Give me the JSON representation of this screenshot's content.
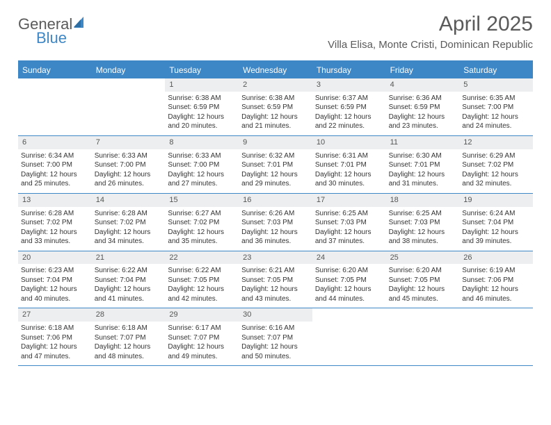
{
  "logo": {
    "word1": "General",
    "word2": "Blue",
    "word1_color": "#5a5a5a",
    "word2_color": "#3d87c7",
    "sail_color": "#3d87c7"
  },
  "title": "April 2025",
  "location": "Villa Elisa, Monte Cristi, Dominican Republic",
  "colors": {
    "header_bg": "#3d87c7",
    "daynum_bg": "#eceeef",
    "border": "#3d87c7",
    "text": "#333333",
    "title_color": "#5a5a5a"
  },
  "day_headers": [
    "Sunday",
    "Monday",
    "Tuesday",
    "Wednesday",
    "Thursday",
    "Friday",
    "Saturday"
  ],
  "weeks": [
    [
      null,
      null,
      {
        "n": "1",
        "sr": "Sunrise: 6:38 AM",
        "ss": "Sunset: 6:59 PM",
        "d1": "Daylight: 12 hours",
        "d2": "and 20 minutes."
      },
      {
        "n": "2",
        "sr": "Sunrise: 6:38 AM",
        "ss": "Sunset: 6:59 PM",
        "d1": "Daylight: 12 hours",
        "d2": "and 21 minutes."
      },
      {
        "n": "3",
        "sr": "Sunrise: 6:37 AM",
        "ss": "Sunset: 6:59 PM",
        "d1": "Daylight: 12 hours",
        "d2": "and 22 minutes."
      },
      {
        "n": "4",
        "sr": "Sunrise: 6:36 AM",
        "ss": "Sunset: 6:59 PM",
        "d1": "Daylight: 12 hours",
        "d2": "and 23 minutes."
      },
      {
        "n": "5",
        "sr": "Sunrise: 6:35 AM",
        "ss": "Sunset: 7:00 PM",
        "d1": "Daylight: 12 hours",
        "d2": "and 24 minutes."
      }
    ],
    [
      {
        "n": "6",
        "sr": "Sunrise: 6:34 AM",
        "ss": "Sunset: 7:00 PM",
        "d1": "Daylight: 12 hours",
        "d2": "and 25 minutes."
      },
      {
        "n": "7",
        "sr": "Sunrise: 6:33 AM",
        "ss": "Sunset: 7:00 PM",
        "d1": "Daylight: 12 hours",
        "d2": "and 26 minutes."
      },
      {
        "n": "8",
        "sr": "Sunrise: 6:33 AM",
        "ss": "Sunset: 7:00 PM",
        "d1": "Daylight: 12 hours",
        "d2": "and 27 minutes."
      },
      {
        "n": "9",
        "sr": "Sunrise: 6:32 AM",
        "ss": "Sunset: 7:01 PM",
        "d1": "Daylight: 12 hours",
        "d2": "and 29 minutes."
      },
      {
        "n": "10",
        "sr": "Sunrise: 6:31 AM",
        "ss": "Sunset: 7:01 PM",
        "d1": "Daylight: 12 hours",
        "d2": "and 30 minutes."
      },
      {
        "n": "11",
        "sr": "Sunrise: 6:30 AM",
        "ss": "Sunset: 7:01 PM",
        "d1": "Daylight: 12 hours",
        "d2": "and 31 minutes."
      },
      {
        "n": "12",
        "sr": "Sunrise: 6:29 AM",
        "ss": "Sunset: 7:02 PM",
        "d1": "Daylight: 12 hours",
        "d2": "and 32 minutes."
      }
    ],
    [
      {
        "n": "13",
        "sr": "Sunrise: 6:28 AM",
        "ss": "Sunset: 7:02 PM",
        "d1": "Daylight: 12 hours",
        "d2": "and 33 minutes."
      },
      {
        "n": "14",
        "sr": "Sunrise: 6:28 AM",
        "ss": "Sunset: 7:02 PM",
        "d1": "Daylight: 12 hours",
        "d2": "and 34 minutes."
      },
      {
        "n": "15",
        "sr": "Sunrise: 6:27 AM",
        "ss": "Sunset: 7:02 PM",
        "d1": "Daylight: 12 hours",
        "d2": "and 35 minutes."
      },
      {
        "n": "16",
        "sr": "Sunrise: 6:26 AM",
        "ss": "Sunset: 7:03 PM",
        "d1": "Daylight: 12 hours",
        "d2": "and 36 minutes."
      },
      {
        "n": "17",
        "sr": "Sunrise: 6:25 AM",
        "ss": "Sunset: 7:03 PM",
        "d1": "Daylight: 12 hours",
        "d2": "and 37 minutes."
      },
      {
        "n": "18",
        "sr": "Sunrise: 6:25 AM",
        "ss": "Sunset: 7:03 PM",
        "d1": "Daylight: 12 hours",
        "d2": "and 38 minutes."
      },
      {
        "n": "19",
        "sr": "Sunrise: 6:24 AM",
        "ss": "Sunset: 7:04 PM",
        "d1": "Daylight: 12 hours",
        "d2": "and 39 minutes."
      }
    ],
    [
      {
        "n": "20",
        "sr": "Sunrise: 6:23 AM",
        "ss": "Sunset: 7:04 PM",
        "d1": "Daylight: 12 hours",
        "d2": "and 40 minutes."
      },
      {
        "n": "21",
        "sr": "Sunrise: 6:22 AM",
        "ss": "Sunset: 7:04 PM",
        "d1": "Daylight: 12 hours",
        "d2": "and 41 minutes."
      },
      {
        "n": "22",
        "sr": "Sunrise: 6:22 AM",
        "ss": "Sunset: 7:05 PM",
        "d1": "Daylight: 12 hours",
        "d2": "and 42 minutes."
      },
      {
        "n": "23",
        "sr": "Sunrise: 6:21 AM",
        "ss": "Sunset: 7:05 PM",
        "d1": "Daylight: 12 hours",
        "d2": "and 43 minutes."
      },
      {
        "n": "24",
        "sr": "Sunrise: 6:20 AM",
        "ss": "Sunset: 7:05 PM",
        "d1": "Daylight: 12 hours",
        "d2": "and 44 minutes."
      },
      {
        "n": "25",
        "sr": "Sunrise: 6:20 AM",
        "ss": "Sunset: 7:05 PM",
        "d1": "Daylight: 12 hours",
        "d2": "and 45 minutes."
      },
      {
        "n": "26",
        "sr": "Sunrise: 6:19 AM",
        "ss": "Sunset: 7:06 PM",
        "d1": "Daylight: 12 hours",
        "d2": "and 46 minutes."
      }
    ],
    [
      {
        "n": "27",
        "sr": "Sunrise: 6:18 AM",
        "ss": "Sunset: 7:06 PM",
        "d1": "Daylight: 12 hours",
        "d2": "and 47 minutes."
      },
      {
        "n": "28",
        "sr": "Sunrise: 6:18 AM",
        "ss": "Sunset: 7:07 PM",
        "d1": "Daylight: 12 hours",
        "d2": "and 48 minutes."
      },
      {
        "n": "29",
        "sr": "Sunrise: 6:17 AM",
        "ss": "Sunset: 7:07 PM",
        "d1": "Daylight: 12 hours",
        "d2": "and 49 minutes."
      },
      {
        "n": "30",
        "sr": "Sunrise: 6:16 AM",
        "ss": "Sunset: 7:07 PM",
        "d1": "Daylight: 12 hours",
        "d2": "and 50 minutes."
      },
      null,
      null,
      null
    ]
  ]
}
